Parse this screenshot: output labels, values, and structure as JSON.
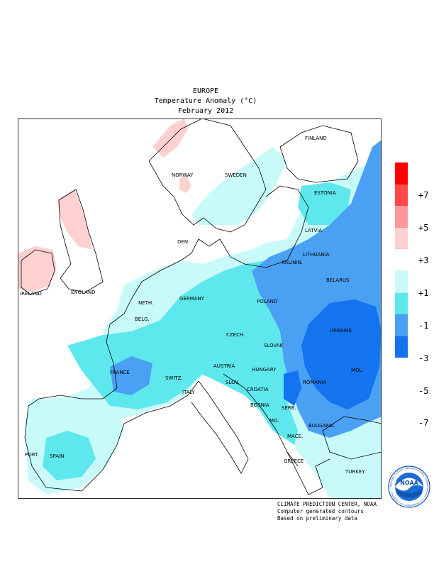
{
  "title": {
    "region": "EUROPE",
    "variable": "Temperature Anomaly (°C)",
    "period": "February 2012"
  },
  "legend": {
    "colors": [
      "#ff0000",
      "#ff4848",
      "#ff9999",
      "#ffd0d0",
      "#ffffff",
      "#c8fafa",
      "#5ee8ee",
      "#4aa0f2",
      "#1474f0"
    ],
    "ticks": [
      "+7",
      "+5",
      "+3",
      "+1",
      "-1",
      "-3",
      "-5",
      "-7"
    ]
  },
  "countries": {
    "finland": "FINLAND",
    "norway": "NORWAY",
    "sweden": "SWEDEN",
    "estonia": "ESTONIA",
    "latvia": "LATVIA",
    "den": "DEN.",
    "lithuania": "LITHUANIA",
    "kalinin": "KALININ.",
    "belarus": "BELARUS",
    "ireland": "IRELAND",
    "england": "ENGLAND",
    "neth": "NETH.",
    "germany": "GERMANY",
    "poland": "POLAND",
    "belg": "BELG.",
    "ukraine": "UKRAINE",
    "czech": "CZECH.",
    "slovak": "SLOVAK",
    "mol": "MOL.",
    "france": "FRANCE",
    "switz": "SWITZ.",
    "austria": "AUSTRIA",
    "hungary": "HUNGARY",
    "romania": "ROMANIA",
    "italy": "ITALY",
    "slov": "SLOV.",
    "croatia": "CROATIA",
    "bosnia": "BOSNIA",
    "serb": "SERB.",
    "bulgaria": "BULGARIA",
    "mo": "MO.",
    "mace": "MACE.",
    "port": "PORT.",
    "spain": "SPAIN",
    "greece": "GREECE",
    "turkey": "TURKEY"
  },
  "credits": {
    "line1": "CLIMATE PREDICTION CENTER, NOAA",
    "line2": "Computer generated contours",
    "line3": "Based on preliminary data"
  },
  "logo": {
    "text": "NOAA",
    "ring_text": "NATIONAL OCEANIC AND ATMOSPHERIC ADMINISTRATION · U.S. DEPARTMENT OF COMMERCE"
  }
}
